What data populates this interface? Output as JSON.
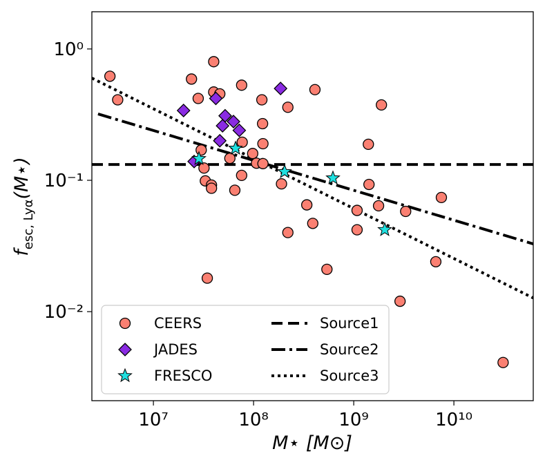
{
  "chart_data": {
    "type": "scatter",
    "xlabel": "M⋆ [M⊙]",
    "ylabel": {
      "main": "f",
      "subscript": "esc, Lyα",
      "suffix": "(M⋆)"
    },
    "xscale": "log",
    "yscale": "log",
    "xlim": [
      2430000.0,
      62000000000.0
    ],
    "ylim": [
      0.0021,
      1.92
    ],
    "xticks": [
      {
        "value": 10000000,
        "label": "10⁷"
      },
      {
        "value": 100000000,
        "label": "10⁸"
      },
      {
        "value": 1000000000,
        "label": "10⁹"
      },
      {
        "value": 10000000000,
        "label": "10¹⁰"
      }
    ],
    "yticks": [
      {
        "value": 0.01,
        "label": "10⁻²"
      },
      {
        "value": 0.1,
        "label": "10⁻¹"
      },
      {
        "value": 1,
        "label": "10⁰"
      }
    ],
    "legend": "lower left",
    "series": [
      {
        "name": "CEERS",
        "color": "#fa8072",
        "marker": "circle",
        "x": [
          3680000.0,
          4400000.0,
          24000000.0,
          28000000.0,
          40000000.0,
          40000000.0,
          46000000.0,
          76000000.0,
          121000000.0,
          220000000.0,
          410000000.0,
          1890000000.0,
          123000000.0,
          124000000.0,
          77000000.0,
          98000000.0,
          1400000000.0,
          30000000.0,
          58000000.0,
          107000000.0,
          124000000.0,
          32000000.0,
          33000000.0,
          38000000.0,
          38000000.0,
          65000000.0,
          76000000.0,
          190000000.0,
          1420000000.0,
          340000000.0,
          1770000000.0,
          1080000000.0,
          3300000000.0,
          7500000000.0,
          390000000.0,
          1080000000.0,
          220000000.0,
          540000000.0,
          34500000.0,
          6600000000.0,
          2900000000.0,
          31000000000.0
        ],
        "values": [
          0.62,
          0.41,
          0.59,
          0.42,
          0.8,
          0.47,
          0.455,
          0.53,
          0.41,
          0.36,
          0.49,
          0.375,
          0.27,
          0.19,
          0.195,
          0.16,
          0.188,
          0.17,
          0.147,
          0.135,
          0.134,
          0.124,
          0.099,
          0.092,
          0.087,
          0.084,
          0.109,
          0.094,
          0.093,
          0.065,
          0.064,
          0.059,
          0.058,
          0.074,
          0.047,
          0.042,
          0.04,
          0.021,
          0.018,
          0.024,
          0.012,
          0.0041
        ]
      },
      {
        "name": "JADES",
        "color": "#8a2be2",
        "marker": "diamond",
        "x": [
          20000000.0,
          42000000.0,
          186000000.0,
          52000000.0,
          63000000.0,
          49000000.0,
          72000000.0,
          46000000.0,
          25500000.0
        ],
        "values": [
          0.34,
          0.42,
          0.5,
          0.31,
          0.28,
          0.26,
          0.24,
          0.2,
          0.139
        ]
      },
      {
        "name": "FRESCO",
        "color": "#20e0e0",
        "marker": "star",
        "x": [
          28500000.0,
          66000000.0,
          204000000.0,
          620000000.0,
          2040000000.0
        ],
        "values": [
          0.146,
          0.175,
          0.116,
          0.104,
          0.042
        ]
      },
      {
        "name": "Source1",
        "color": "#000000",
        "linestyle": "dashed",
        "x": [
          2430000.0,
          62000000000.0
        ],
        "values": [
          0.132,
          0.132
        ]
      },
      {
        "name": "Source2",
        "color": "#000000",
        "linestyle": "dashdot",
        "x": [
          2800000.0,
          62000000000.0
        ],
        "values": [
          0.32,
          0.0328
        ]
      },
      {
        "name": "Source3",
        "color": "#000000",
        "linestyle": "dotted",
        "x": [
          2430000.0,
          62000000000.0
        ],
        "values": [
          0.6,
          0.0127
        ]
      }
    ]
  }
}
